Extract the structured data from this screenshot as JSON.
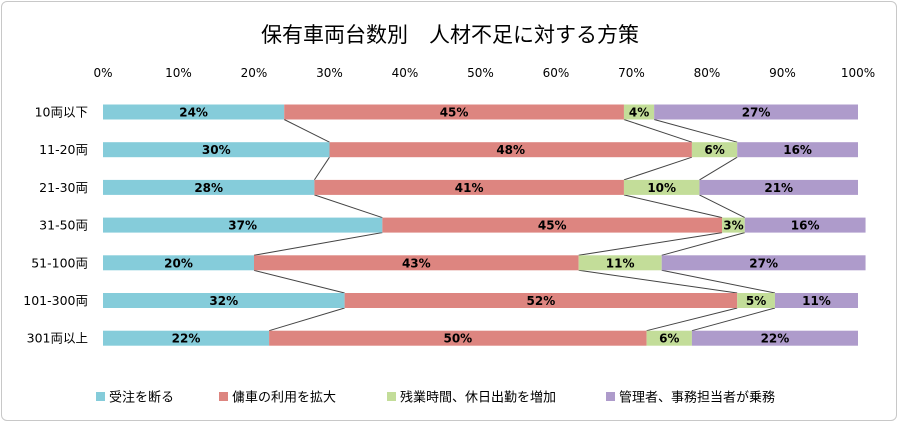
{
  "chart_data": {
    "type": "bar",
    "stacked": true,
    "orientation": "horizontal",
    "percent_stacked": true,
    "title": "保有車両台数別　人材不足に対する方策",
    "categories": [
      "10両以下",
      "11-20両",
      "21-30両",
      "31-50両",
      "51-100両",
      "101-300両",
      "301両以上"
    ],
    "series": [
      {
        "name": "受注を断る",
        "color": "#85CCDA",
        "values": [
          24,
          30,
          28,
          37,
          20,
          32,
          22
        ]
      },
      {
        "name": "傭車の利用を拡大",
        "color": "#DD8580",
        "values": [
          45,
          48,
          41,
          45,
          43,
          52,
          50
        ]
      },
      {
        "name": "残業時間、休日出勤を増加",
        "color": "#C3DD99",
        "values": [
          4,
          6,
          10,
          3,
          11,
          5,
          6
        ]
      },
      {
        "name": "管理者、事務担当者が乗務",
        "color": "#AE9BCB",
        "values": [
          27,
          16,
          21,
          16,
          27,
          11,
          22
        ]
      }
    ],
    "xlim": [
      0,
      100
    ],
    "xticks": [
      "0%",
      "10%",
      "20%",
      "30%",
      "40%",
      "50%",
      "60%",
      "70%",
      "80%",
      "90%",
      "100%"
    ],
    "data_label_suffix": "%",
    "series_lines": true,
    "legend_position": "bottom",
    "grid": false
  }
}
